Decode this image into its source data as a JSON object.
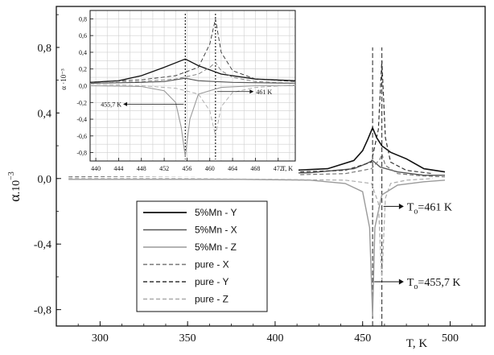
{
  "chart_data": [
    {
      "type": "line",
      "title": "",
      "xlabel": "T, K",
      "ylabel_main": "α",
      "ylabel_suffix": ".10",
      "ylabel_exp": "−3",
      "xlim": [
        275,
        520
      ],
      "ylim": [
        -0.9,
        1.05
      ],
      "xticks": [
        300,
        350,
        400,
        450,
        500
      ],
      "yticks": [
        -0.8,
        -0.4,
        0.0,
        0.4,
        0.8
      ],
      "ytick_labels": [
        "-0,8",
        "-0,4",
        "0,0",
        "0,4",
        "0,8"
      ],
      "grid": false,
      "legend": {
        "placement": "lower-left",
        "entries": [
          {
            "label": "5%Mn - Y",
            "color": "#111111",
            "dash": "solid",
            "width": 1.6
          },
          {
            "label": "5%Mn - X",
            "color": "#555555",
            "dash": "solid",
            "width": 1.4
          },
          {
            "label": "5%Mn - Z",
            "color": "#9a9a9a",
            "dash": "solid",
            "width": 1.4
          },
          {
            "label": "pure - X",
            "color": "#777777",
            "dash": "dashed",
            "width": 1.2
          },
          {
            "label": "pure - Y",
            "color": "#333333",
            "dash": "dashed",
            "width": 1.2
          },
          {
            "label": "pure - Z",
            "color": "#aaaaaa",
            "dash": "dashed",
            "width": 1.2
          }
        ]
      },
      "series": [
        {
          "name": "5%Mn - Y",
          "x": [
            282,
            320,
            360,
            400,
            430,
            445,
            450,
            453,
            455.7,
            458,
            461,
            466,
            475,
            485,
            497
          ],
          "y": [
            0.03,
            0.035,
            0.04,
            0.045,
            0.06,
            0.11,
            0.17,
            0.24,
            0.31,
            0.25,
            0.2,
            0.16,
            0.12,
            0.06,
            0.04
          ]
        },
        {
          "name": "5%Mn - X",
          "x": [
            282,
            330,
            380,
            420,
            445,
            452,
            455.7,
            460,
            470,
            485,
            497
          ],
          "y": [
            0.02,
            0.025,
            0.03,
            0.035,
            0.06,
            0.09,
            0.11,
            0.07,
            0.04,
            0.02,
            0.02
          ]
        },
        {
          "name": "5%Mn - Z",
          "x": [
            282,
            330,
            380,
            420,
            440,
            450,
            454,
            455.7,
            457,
            461,
            470,
            485,
            497
          ],
          "y": [
            -0.005,
            -0.005,
            -0.005,
            -0.01,
            -0.03,
            -0.08,
            -0.3,
            -0.84,
            -0.3,
            -0.1,
            -0.04,
            -0.02,
            -0.01
          ]
        },
        {
          "name": "pure - X",
          "x": [
            282,
            340,
            400,
            440,
            455,
            460,
            461,
            463,
            470,
            485,
            497
          ],
          "y": [
            0.01,
            0.015,
            0.02,
            0.03,
            0.06,
            0.12,
            0.15,
            0.08,
            0.03,
            0.015,
            0.01
          ]
        },
        {
          "name": "pure - Y",
          "x": [
            282,
            340,
            400,
            440,
            455,
            459,
            461,
            463,
            466,
            475,
            490
          ],
          "y": [
            0.025,
            0.03,
            0.035,
            0.05,
            0.1,
            0.3,
            0.72,
            0.25,
            0.1,
            0.05,
            0.03
          ]
        },
        {
          "name": "pure - Z",
          "x": [
            282,
            340,
            400,
            440,
            455,
            459,
            461,
            463,
            466,
            475,
            490
          ],
          "y": [
            0.0,
            0.0,
            -0.005,
            -0.01,
            -0.03,
            -0.15,
            -0.62,
            -0.12,
            -0.03,
            -0.01,
            0.0
          ]
        }
      ],
      "annotations": [
        {
          "text": "T",
          "sub": "o",
          "after": "=461 K",
          "x": 461,
          "y": -0.17,
          "arrow_from_x": 461,
          "arrow_to_x": 468
        },
        {
          "text": "T",
          "sub": "o",
          "after": "=455,7 K",
          "x": 455.7,
          "y": -0.63,
          "arrow_from_x": 455.7,
          "arrow_to_x": 468
        }
      ],
      "vlines": [
        455.7,
        461
      ]
    },
    {
      "type": "line",
      "title": "",
      "xlabel": "T, K",
      "ylabel": "α ·10⁻³",
      "xlim": [
        439,
        475
      ],
      "ylim": [
        -0.9,
        0.9
      ],
      "xticks": [
        440,
        444,
        448,
        452,
        456,
        460,
        464,
        468,
        472
      ],
      "xtick_labels": [
        "440",
        "444",
        "448",
        "452",
        "456",
        "460",
        "464",
        "468",
        "472"
      ],
      "yticks": [
        -0.8,
        -0.6,
        -0.4,
        -0.2,
        0.0,
        0.2,
        0.4,
        0.6,
        0.8
      ],
      "ytick_labels": [
        "-0,8",
        "-0,6",
        "-0,4",
        "-0,2",
        "0,0",
        "0,2",
        "0,4",
        "0,6",
        "0,8"
      ],
      "grid": true,
      "series": [
        {
          "name": "5%Mn - Y",
          "x": [
            439,
            444,
            448,
            452,
            455.7,
            458,
            462,
            468,
            475
          ],
          "y": [
            0.04,
            0.06,
            0.12,
            0.22,
            0.32,
            0.24,
            0.14,
            0.08,
            0.06
          ]
        },
        {
          "name": "5%Mn - X",
          "x": [
            439,
            448,
            452,
            455.7,
            458,
            464,
            475
          ],
          "y": [
            0.03,
            0.04,
            0.05,
            0.09,
            0.06,
            0.04,
            0.03
          ]
        },
        {
          "name": "5%Mn - Z",
          "x": [
            439,
            448,
            452,
            454,
            455,
            455.7,
            456.5,
            458,
            462,
            468,
            475
          ],
          "y": [
            0.0,
            -0.01,
            -0.06,
            -0.2,
            -0.5,
            -0.85,
            -0.4,
            -0.1,
            -0.02,
            0.0,
            0.0
          ]
        },
        {
          "name": "pure - X",
          "x": [
            439,
            448,
            454,
            458,
            460,
            461,
            462,
            464,
            468,
            475
          ],
          "y": [
            0.03,
            0.05,
            0.08,
            0.14,
            0.22,
            0.28,
            0.18,
            0.1,
            0.05,
            0.03
          ]
        },
        {
          "name": "pure - Y",
          "x": [
            439,
            448,
            454,
            458,
            460,
            461,
            462,
            464,
            468,
            475
          ],
          "y": [
            0.04,
            0.07,
            0.12,
            0.22,
            0.5,
            0.8,
            0.4,
            0.18,
            0.08,
            0.05
          ]
        },
        {
          "name": "pure - Z",
          "x": [
            439,
            448,
            454,
            458,
            460,
            461,
            462,
            464,
            468,
            475
          ],
          "y": [
            0.02,
            0.0,
            -0.03,
            -0.1,
            -0.3,
            -0.6,
            -0.25,
            -0.08,
            -0.02,
            0.01
          ]
        }
      ],
      "annotations": [
        {
          "text": "455,7 K",
          "x": 455.7,
          "y": -0.22
        },
        {
          "text": "461 K",
          "x": 461,
          "y": -0.07
        }
      ],
      "vlines": [
        455.7,
        461
      ]
    }
  ]
}
